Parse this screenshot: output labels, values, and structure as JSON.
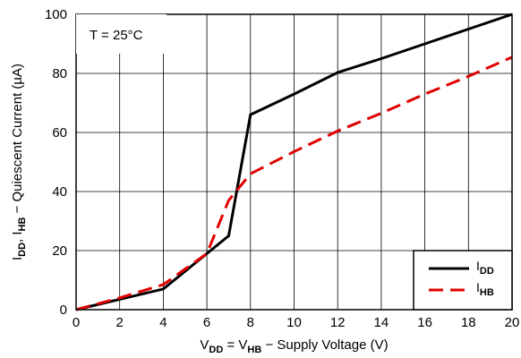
{
  "chart_data": {
    "type": "line",
    "annotation": "T = 25°C",
    "xlabel": {
      "parts": [
        {
          "text": "V",
          "sub": false
        },
        {
          "text": "DD",
          "sub": true
        },
        {
          "text": " = V",
          "sub": false
        },
        {
          "text": "HB",
          "sub": true
        },
        {
          "text": " − Supply Voltage (V)",
          "sub": false
        }
      ]
    },
    "ylabel": {
      "parts": [
        {
          "text": "I",
          "sub": false
        },
        {
          "text": "DD",
          "sub": true
        },
        {
          "text": ", I",
          "sub": false
        },
        {
          "text": "HB",
          "sub": true
        },
        {
          "text": " − Quiescent Current (µA)",
          "sub": false
        }
      ]
    },
    "xlim": [
      0,
      20
    ],
    "ylim": [
      0,
      100
    ],
    "x_ticks": [
      0,
      2,
      4,
      6,
      8,
      10,
      12,
      14,
      16,
      18,
      20
    ],
    "y_ticks": [
      0,
      20,
      40,
      60,
      80,
      100
    ],
    "grid": true,
    "legend_position": "bottom-right",
    "series": [
      {
        "name": "I",
        "name_sub": "DD",
        "color": "#000000",
        "style": "solid",
        "points": [
          [
            0,
            0
          ],
          [
            2,
            3.5
          ],
          [
            4,
            7
          ],
          [
            6,
            19
          ],
          [
            7,
            25
          ],
          [
            8,
            66
          ],
          [
            10,
            73
          ],
          [
            12,
            80.3
          ],
          [
            14,
            85
          ],
          [
            16,
            90
          ],
          [
            18,
            95
          ],
          [
            20,
            100
          ]
        ]
      },
      {
        "name": "I",
        "name_sub": "HB",
        "color": "#e00000",
        "style": "dash",
        "points": [
          [
            0,
            0
          ],
          [
            2,
            4
          ],
          [
            4,
            8.5
          ],
          [
            6,
            19
          ],
          [
            7,
            37
          ],
          [
            8,
            46
          ],
          [
            10,
            53.5
          ],
          [
            12,
            60.5
          ],
          [
            14,
            66.5
          ],
          [
            16,
            73
          ],
          [
            18,
            79
          ],
          [
            20,
            85.5
          ]
        ]
      }
    ]
  }
}
